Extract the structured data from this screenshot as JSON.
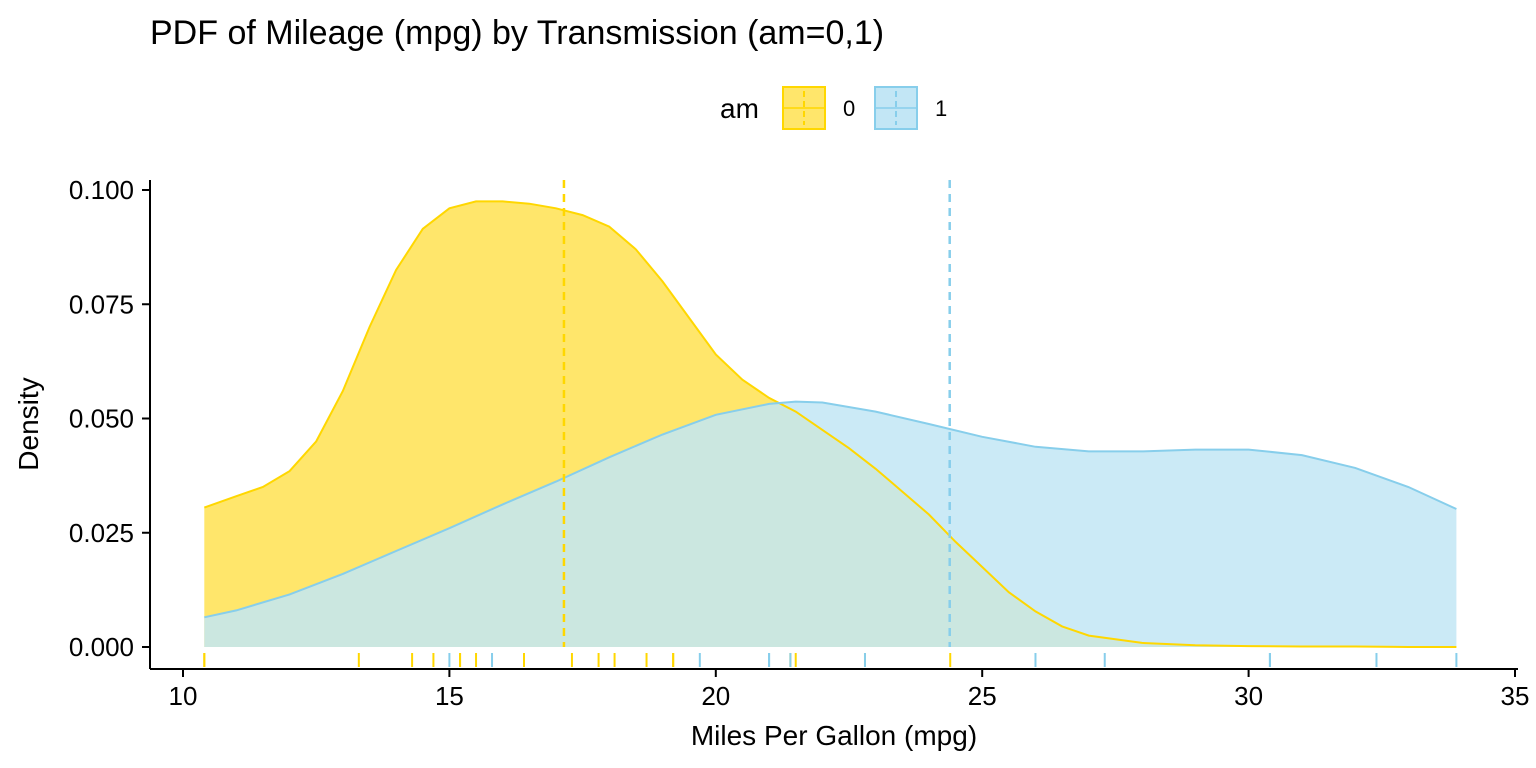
{
  "chart_data": {
    "type": "area",
    "title": "PDF of Mileage (mpg) by Transmission (am=0,1)",
    "xlabel": "Miles Per Gallon (mpg)",
    "ylabel": "Density",
    "xlim": [
      10,
      35
    ],
    "ylim": [
      0,
      0.1
    ],
    "x_ticks": [
      "10",
      "15",
      "20",
      "25",
      "30",
      "35"
    ],
    "y_ticks": [
      "0.000",
      "0.025",
      "0.050",
      "0.075",
      "0.100"
    ],
    "legend": {
      "title": "am",
      "position": "top",
      "entries": [
        "0",
        "1"
      ]
    },
    "grid": false,
    "colors": {
      "am0": "#FFD700",
      "am1": "#87CEEB",
      "am0_fill": "#FFE66B",
      "am1_fill": "#C2E6F5"
    },
    "series": [
      {
        "name": "0",
        "mean": 17.15,
        "x": [
          10.4,
          11,
          11.5,
          12,
          12.5,
          13,
          13.5,
          14,
          14.5,
          15,
          15.5,
          16,
          16.5,
          17,
          17.5,
          18,
          18.5,
          19,
          19.5,
          20,
          20.5,
          21,
          21.5,
          22,
          22.5,
          23,
          23.5,
          24,
          24.5,
          25,
          25.5,
          26,
          26.5,
          27,
          28,
          29,
          30,
          31,
          32,
          33,
          33.9
        ],
        "y": [
          0.0305,
          0.033,
          0.035,
          0.0385,
          0.045,
          0.056,
          0.07,
          0.0825,
          0.0915,
          0.096,
          0.0975,
          0.0975,
          0.097,
          0.096,
          0.0945,
          0.092,
          0.087,
          0.08,
          0.072,
          0.064,
          0.0585,
          0.0545,
          0.0515,
          0.0475,
          0.0435,
          0.039,
          0.034,
          0.029,
          0.023,
          0.0175,
          0.012,
          0.0078,
          0.0045,
          0.0025,
          0.0009,
          0.0004,
          0.0002,
          0.0001,
          0.0001,
          0.0,
          0.0
        ],
        "rug": [
          10.4,
          10.4,
          13.3,
          14.3,
          14.7,
          15.2,
          15.2,
          15.5,
          16.4,
          17.3,
          17.8,
          18.1,
          18.7,
          19.2,
          19.2,
          21.4,
          21.5,
          22.8,
          24.4
        ]
      },
      {
        "name": "1",
        "mean": 24.39,
        "x": [
          10.4,
          11,
          12,
          13,
          14,
          15,
          16,
          17,
          18,
          19,
          20,
          21,
          21.5,
          22,
          23,
          24,
          25,
          26,
          27,
          28,
          29,
          30,
          31,
          32,
          33,
          33.9
        ],
        "y": [
          0.0065,
          0.008,
          0.0115,
          0.016,
          0.021,
          0.026,
          0.0312,
          0.0362,
          0.0415,
          0.0465,
          0.0508,
          0.0532,
          0.0537,
          0.0535,
          0.0515,
          0.0488,
          0.046,
          0.0438,
          0.0428,
          0.0428,
          0.0432,
          0.0432,
          0.042,
          0.0392,
          0.035,
          0.0302
        ],
        "rug": [
          15.0,
          15.8,
          19.7,
          21.0,
          21.0,
          21.4,
          22.8,
          26.0,
          27.3,
          30.4,
          30.4,
          32.4,
          33.9
        ]
      }
    ]
  }
}
